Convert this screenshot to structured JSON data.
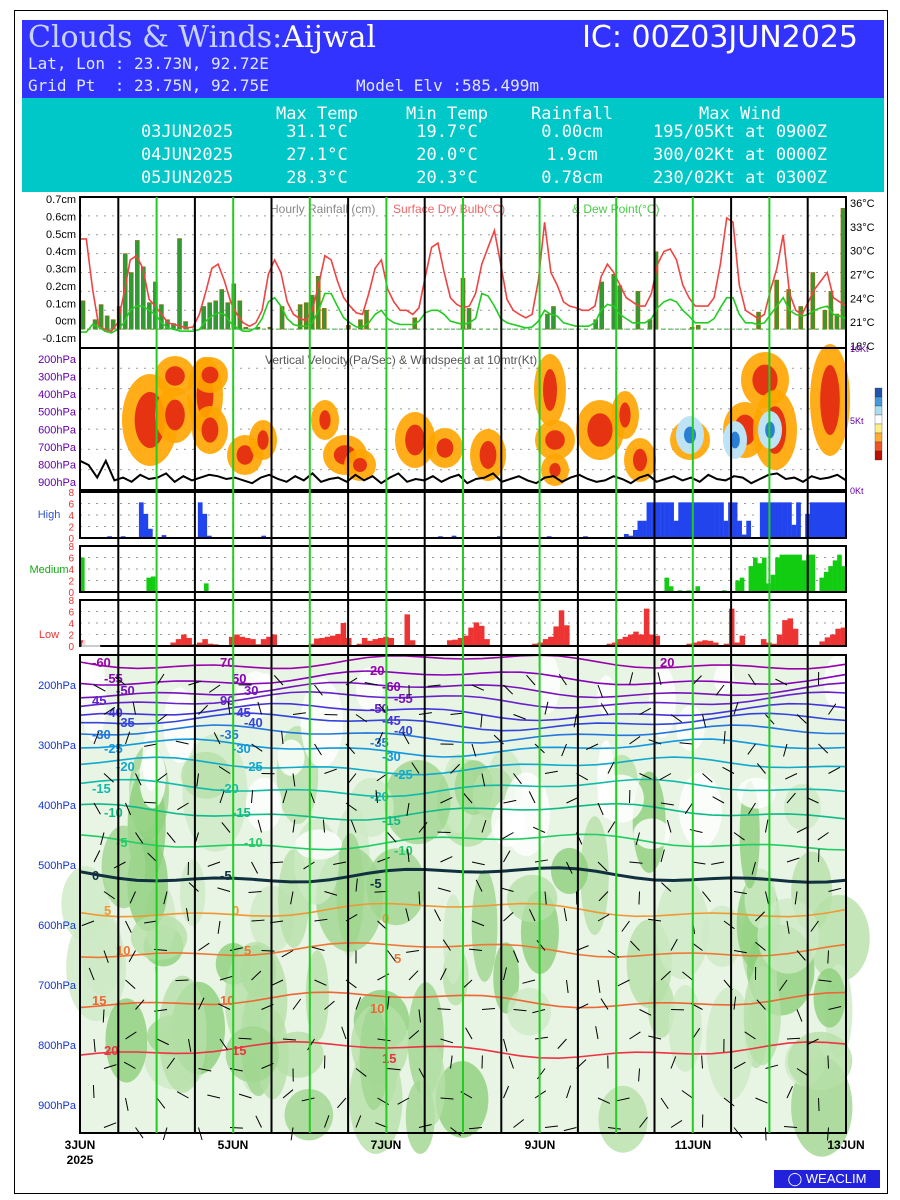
{
  "header": {
    "title": "Clouds & Winds:",
    "location": "Aijwal",
    "ic": "IC: 00Z03JUN2025",
    "latlon": "Lat, Lon : 23.73N, 92.72E",
    "grid": "Grid Pt  : 23.75N, 92.75E",
    "elv": "Model Elv :585.499m"
  },
  "summary": {
    "columns": [
      "Max Temp",
      "Min Temp",
      "Rainfall",
      "Max Wind"
    ],
    "rows": [
      {
        "date": "03JUN2025",
        "max": "31.1°C",
        "min": "19.7°C",
        "rain": "0.00cm",
        "wind": "195/05Kt at 0900Z"
      },
      {
        "date": "04JUN2025",
        "max": "27.1°C",
        "min": "20.0°C",
        "rain": "1.9cm",
        "wind": "300/02Kt at 0000Z"
      },
      {
        "date": "05JUN2025",
        "max": "28.3°C",
        "min": "20.3°C",
        "rain": "0.78cm",
        "wind": "230/02Kt at 0300Z"
      }
    ]
  },
  "colors": {
    "header_blue": "#3333ff",
    "header_cyan": "#00c8c8",
    "rain": "#339933",
    "temp": "#ee4444",
    "dew": "#22cc22",
    "high": "#2244ee",
    "medium": "#11cc11",
    "low": "#ee3333",
    "day_line": "#22cc22"
  },
  "chart_data": [
    {
      "type": "bar",
      "panel": "rainfall",
      "title": "Hourly Rainfall (cm)",
      "ylim": [
        -0.1,
        0.7
      ],
      "yticks": [
        "0.7cm",
        "0.6cm",
        "0.5cm",
        "0.4cm",
        "0.3cm",
        "0.2cm",
        "0.1cm",
        "0cm",
        "-0.1cm"
      ],
      "values": [
        0.15,
        0.0,
        0.05,
        0.13,
        0.07,
        0.05,
        0.12,
        0.4,
        0.3,
        0.47,
        0.33,
        0.14,
        0.25,
        0.13,
        0.05,
        0.03,
        0.48,
        0.04,
        0.0,
        0.0,
        0.12,
        0.14,
        0.15,
        0.21,
        0.14,
        0.24,
        0.15,
        0.01,
        0.0,
        0.01,
        0.0,
        0.01,
        0.0,
        0.12,
        0.0,
        0.0,
        0.13,
        0.14,
        0.18,
        0.28,
        0.11,
        0.0,
        0.0,
        0.0,
        0.02,
        0.0,
        0.05,
        0.1,
        0.0,
        0.0,
        0.0,
        0.0,
        0.0,
        0.0,
        0.0,
        0.06,
        0.0,
        0.0,
        0.0,
        0.0,
        0.0,
        0.0,
        0.0,
        0.27,
        0.11,
        0.0,
        0.0,
        0.0,
        0.0,
        0.0,
        0.0,
        0.0,
        0.0,
        0.0,
        0.0,
        0.0,
        0.0,
        0.08,
        0.12,
        0.0,
        0.0,
        0.0,
        0.0,
        0.0,
        0.0,
        0.05,
        0.25,
        0.0,
        0.29,
        0.23,
        0.0,
        0.0,
        0.2,
        0.0,
        0.05,
        0.41,
        0.0,
        0.0,
        0.0,
        0.0,
        0.0,
        0.01,
        0.02,
        0.0,
        0.0,
        0.0,
        0.0,
        0.0,
        0.0,
        0.0,
        0.0,
        0.0,
        0.09,
        0.0,
        0.0,
        0.26,
        0.0,
        0.21,
        0.0,
        0.12,
        0.0,
        0.3,
        0.0,
        0.1,
        0.2,
        0.08,
        0.64
      ],
      "temp_series": {
        "title": "Surface Dry Bulb(°C)",
        "y2ticks": [
          "36°C",
          "33°C",
          "30°C",
          "27°C",
          "24°C",
          "21°C",
          "18°C"
        ],
        "ylim": [
          18,
          36
        ],
        "values": [
          31.0,
          31.0,
          25.0,
          20.6,
          20.2,
          20.0,
          21.0,
          24.5,
          28.5,
          29.0,
          27.5,
          23.8,
          23.0,
          22.0,
          21.0,
          20.8,
          20.6,
          20.4,
          20.5,
          22.0,
          24.6,
          27.5,
          28.0,
          26.0,
          23.5,
          22.0,
          21.0,
          20.6,
          21.0,
          22.5,
          26.8,
          28.5,
          27.0,
          23.5,
          22.0,
          21.5,
          21.3,
          22.5,
          25.5,
          29.0,
          28.5,
          26.0,
          24.0,
          23.0,
          22.2,
          22.0,
          24.5,
          27.5,
          28.5,
          25.0,
          23.5,
          22.5,
          22.5,
          22.0,
          22.8,
          26.5,
          30.0,
          30.5,
          27.0,
          24.0,
          23.2,
          22.8,
          23.0,
          24.5,
          28.0,
          30.0,
          32.0,
          28.0,
          23.8,
          22.5,
          22.0,
          21.6,
          22.0,
          26.0,
          33.0,
          27.0,
          25.5,
          23.5,
          23.0,
          22.8,
          22.5,
          22.5,
          23.0,
          26.5,
          28.0,
          27.0,
          25.5,
          24.0,
          23.5,
          23.0,
          23.0,
          24.5,
          28.0,
          29.5,
          29.8,
          28.5,
          25.5,
          24.0,
          23.0,
          23.0,
          23.0,
          24.0,
          28.0,
          33.5,
          33.0,
          25.5,
          22.5,
          22.0,
          21.5,
          22.0,
          25.0,
          27.5,
          31.5,
          24.5,
          22.5,
          22.0,
          23.5,
          25.0,
          26.0,
          27.0,
          24.0,
          23.5,
          23.0
        ]
      },
      "dew_series": {
        "title": "Dew Point(°C)",
        "values": [
          19.9,
          19.9,
          20.8,
          20.5,
          20.0,
          19.8,
          20.2,
          21.0,
          22.5,
          23.0,
          23.0,
          22.5,
          22.0,
          21.0,
          20.4,
          20.2,
          20.0,
          20.0,
          20.0,
          20.2,
          21.2,
          21.8,
          22.2,
          22.0,
          21.0,
          20.4,
          20.0,
          20.0,
          20.4,
          21.5,
          23.5,
          24.0,
          23.0,
          21.5,
          20.8,
          20.6,
          20.6,
          21.0,
          22.5,
          24.5,
          24.5,
          23.0,
          21.6,
          21.0,
          20.5,
          20.5,
          21.0,
          22.0,
          22.5,
          21.5,
          21.0,
          20.8,
          20.8,
          20.8,
          21.2,
          22.2,
          22.5,
          22.5,
          22.0,
          21.2,
          21.0,
          20.8,
          21.0,
          21.5,
          24.5,
          24.2,
          23.0,
          21.5,
          21.0,
          20.8,
          20.6,
          20.4,
          20.5,
          21.2,
          22.5,
          22.0,
          21.8,
          21.0,
          20.8,
          20.6,
          20.6,
          20.6,
          21.0,
          22.5,
          23.2,
          23.0,
          22.0,
          21.5,
          21.0,
          21.0,
          21.0,
          21.5,
          22.8,
          23.5,
          23.8,
          23.5,
          22.5,
          21.8,
          21.0,
          21.0,
          21.0,
          21.5,
          22.8,
          24.0,
          24.0,
          22.0,
          21.0,
          21.0,
          20.8,
          21.0,
          22.0,
          23.0,
          24.0,
          22.5,
          22.0,
          21.8,
          22.0,
          22.5,
          22.8,
          23.0,
          22.0,
          21.8,
          21.5
        ]
      }
    },
    {
      "type": "heatmap",
      "panel": "vertical_velocity",
      "title": "Vertical Velocity(Pa/Sec) & Windspeed at 10mtr(Kt)",
      "yticks": [
        "200hPa",
        "300hPa",
        "400hPa",
        "500hPa",
        "600hPa",
        "700hPa",
        "800hPa",
        "900hPa"
      ],
      "y2ticks": [
        "10Kt",
        "5Kt",
        "0Kt"
      ],
      "windspeed_10m_kt": [
        1.8,
        1.5,
        0.6,
        1.8,
        0.4,
        0.6,
        0.3,
        0.8,
        0.5,
        0.6,
        0.9,
        0.3,
        0.7,
        0.4,
        0.6,
        0.8,
        0.7,
        0.5,
        0.6,
        0.4,
        0.2,
        0.6,
        0.8,
        0.5,
        0.3,
        0.7,
        0.4,
        0.9,
        0.3,
        0.5,
        0.6,
        0.3,
        0.8,
        0.4,
        0.7,
        0.2,
        0.6,
        0.9,
        0.3,
        0.5,
        0.4,
        0.7,
        0.3,
        0.6,
        0.8,
        0.2,
        0.5,
        0.6,
        0.9,
        0.3,
        0.5,
        0.7,
        0.4,
        0.2,
        0.6,
        0.7,
        0.3,
        0.6,
        0.8,
        0.5,
        0.3,
        0.4,
        0.7,
        0.5,
        0.2,
        0.6,
        0.8,
        0.3,
        0.5,
        0.7,
        0.4,
        0.6,
        0.3,
        0.8,
        0.5,
        0.4,
        0.7,
        0.6,
        0.2,
        0.5,
        0.8,
        0.9,
        0.5,
        0.6,
        0.3,
        0.7,
        0.5,
        0.6,
        0.8,
        0.4
      ]
    },
    {
      "type": "bar",
      "panel": "cloud_high",
      "title": "High",
      "ylim": [
        0,
        8
      ],
      "yticks": [
        "8",
        "6",
        "4",
        "2",
        "0"
      ],
      "values": [
        0,
        0,
        0,
        0,
        0,
        0,
        0.3,
        0,
        0,
        0.3,
        0,
        0,
        0,
        6.2,
        4.2,
        1.6,
        0,
        0,
        0.5,
        0,
        0,
        0,
        0,
        0,
        0,
        0,
        6.2,
        4.2,
        0.4,
        0,
        0,
        0,
        0,
        0,
        0,
        0,
        0,
        0,
        0,
        0,
        0.4,
        0,
        0,
        0,
        0,
        0,
        0,
        0,
        0,
        0,
        0,
        0,
        0,
        0,
        0,
        0,
        0,
        0,
        0,
        0,
        0,
        0,
        0,
        0,
        0,
        0,
        0,
        0,
        0,
        0,
        0,
        0,
        0,
        0,
        0,
        0,
        0,
        0,
        0,
        0.3,
        0,
        0,
        0.4,
        0,
        0,
        0,
        0,
        0,
        0,
        0,
        0,
        0,
        0.3,
        0,
        0,
        0,
        0,
        0,
        0,
        0,
        0,
        0,
        0,
        0.3,
        0,
        0,
        0,
        0,
        0,
        0,
        0,
        0.3,
        0,
        0,
        0,
        0,
        0,
        0,
        0,
        0,
        0.7,
        0.4,
        1.4,
        3.0,
        3.0,
        6.2,
        6.2,
        6.2,
        6.2,
        6.2,
        6.2,
        3.0,
        6.2,
        6.2,
        6.2,
        6.2,
        6.2,
        6.2,
        6.2,
        6.2,
        6.2,
        6.2,
        3.0,
        6.2,
        6.2,
        3.0,
        0.6,
        3.0,
        0,
        0,
        6.2,
        6.2,
        6.2,
        6.2,
        6.2,
        6.2,
        6.2,
        2.3,
        6.2,
        0,
        4.2,
        6.2,
        6.2,
        6.2,
        6.2,
        6.2,
        6.2,
        6.2,
        6.2
      ]
    },
    {
      "type": "bar",
      "panel": "cloud_medium",
      "title": "Medium",
      "ylim": [
        0,
        8
      ],
      "yticks": [
        "8",
        "6",
        "4",
        "2",
        "0"
      ],
      "values": [
        6.0,
        0,
        0,
        0,
        0,
        0,
        0,
        0,
        0,
        0,
        0,
        0,
        0,
        0,
        0,
        2.5,
        2.7,
        0,
        0,
        0,
        0,
        0,
        0,
        0,
        0,
        0,
        0,
        0,
        1.5,
        0,
        0,
        0,
        0,
        0,
        0,
        0,
        0,
        0,
        0,
        0,
        0,
        0,
        0,
        0,
        0,
        0,
        0,
        0,
        0,
        0,
        0,
        0,
        0,
        0,
        0,
        0,
        0,
        0,
        0,
        0,
        0,
        0,
        0,
        0,
        0,
        0,
        0,
        0,
        0,
        0,
        0,
        0,
        0,
        0,
        0,
        0,
        0,
        0,
        0,
        0,
        0,
        0,
        0,
        0,
        0,
        0,
        0,
        0,
        0,
        0,
        0,
        0,
        0,
        0,
        0,
        0,
        0,
        0,
        0,
        0,
        0,
        0,
        0,
        0,
        0,
        0,
        0,
        0,
        0,
        0,
        0,
        0,
        0,
        0,
        0,
        0,
        0,
        0,
        0,
        0,
        0,
        0,
        0,
        0,
        0,
        0,
        0,
        0,
        0,
        0,
        0,
        0,
        2.5,
        1.0,
        0,
        0.3,
        0,
        0.3,
        0,
        1.0,
        0,
        0,
        0,
        0,
        0,
        0.3,
        0,
        0,
        2.0,
        2.5,
        0,
        4.5,
        6.0,
        5.0,
        6.0,
        1.5,
        3.0,
        6.0,
        6.5,
        6.5,
        6.5,
        6.5,
        6.5,
        5.5,
        6.5,
        6.5,
        0,
        2.5,
        3.5,
        4.5,
        5.5,
        6.5,
        4.5
      ]
    },
    {
      "type": "bar",
      "panel": "cloud_low",
      "title": "Low",
      "ylim": [
        0,
        8
      ],
      "yticks": [
        "8",
        "6",
        "4",
        "2",
        "0"
      ],
      "values": [
        1.0,
        0,
        0,
        0,
        0,
        0,
        0,
        0,
        0,
        0,
        0,
        0,
        0,
        0,
        0,
        0,
        0,
        0.6,
        1.2,
        2.0,
        1.4,
        0.3,
        0.6,
        1.2,
        0.4,
        0.3,
        0,
        0,
        1.6,
        2.0,
        1.6,
        1.4,
        1.2,
        0.3,
        1.2,
        1.6,
        2.0,
        0,
        0,
        0,
        0,
        0,
        0,
        0.4,
        1.3,
        1.4,
        1.6,
        1.8,
        2.1,
        4.0,
        1.4,
        0,
        0.4,
        1.4,
        0.9,
        1.2,
        1.4,
        1.6,
        1.4,
        0,
        0,
        5.5,
        1.0,
        0,
        0,
        0,
        0,
        0,
        0,
        1.0,
        1.1,
        1.4,
        1.8,
        3.2,
        4.1,
        3.5,
        1.2,
        0,
        0,
        0,
        0,
        0,
        0,
        0,
        0,
        0.4,
        0.6,
        1.2,
        1.6,
        3.4,
        6.2,
        3.6,
        0,
        0,
        0,
        0,
        0,
        0,
        0,
        0.4,
        0.6,
        1.2,
        1.6,
        2.0,
        2.5,
        2.0,
        6.5,
        2.0,
        1.8,
        0,
        0,
        0,
        0,
        0,
        0.4,
        0.6,
        0.8,
        1.0,
        0.9,
        0.6,
        0,
        0.4,
        6.5,
        0.6,
        1.8,
        0,
        0,
        0,
        1.2,
        0.6,
        0.4,
        2.0,
        4.5,
        4.8,
        3.0,
        0,
        0,
        0,
        0,
        0.8,
        1.5,
        2.0,
        3.0,
        3.2
      ]
    },
    {
      "type": "heatmap",
      "panel": "upper_air",
      "title": "",
      "yticks": [
        "200hPa",
        "300hPa",
        "400hPa",
        "500hPa",
        "600hPa",
        "700hPa",
        "800hPa",
        "900hPa"
      ],
      "xticks": [
        "3JUN\n2025",
        "5JUN",
        "7JUN",
        "9JUN",
        "11JUN",
        "13JUN"
      ],
      "xlim": [
        "3JUN2025",
        "13JUN2025"
      ],
      "temperature_contours_c": [
        -60,
        -55,
        -50,
        -45,
        -40,
        -35,
        -30,
        -25,
        -20,
        -15,
        -10,
        -5,
        0,
        5,
        10,
        15,
        20
      ],
      "humidity_contours_pct": [
        30,
        50,
        70,
        90
      ],
      "contour_labels": [
        "-60",
        "-55",
        "-50",
        "45",
        "-40",
        "-35",
        "-30",
        "-25",
        "-20",
        "-15",
        "-10",
        "-5",
        "0",
        "5",
        "10",
        "15",
        "20",
        "70",
        "50",
        "30",
        "90",
        "-45",
        "-40",
        "-35",
        "-30",
        "-25",
        "-20",
        "-15",
        "-10",
        "-5",
        "0",
        "5",
        "10",
        "15",
        "20",
        "-60",
        "-55",
        "-50",
        "-45",
        "-40",
        "-35",
        "-30",
        "-25",
        "-20",
        "-15",
        "-10",
        "-5",
        "0",
        "5",
        "10",
        "15",
        "20"
      ]
    }
  ],
  "branding": {
    "logo_text": "WEACLIM"
  }
}
